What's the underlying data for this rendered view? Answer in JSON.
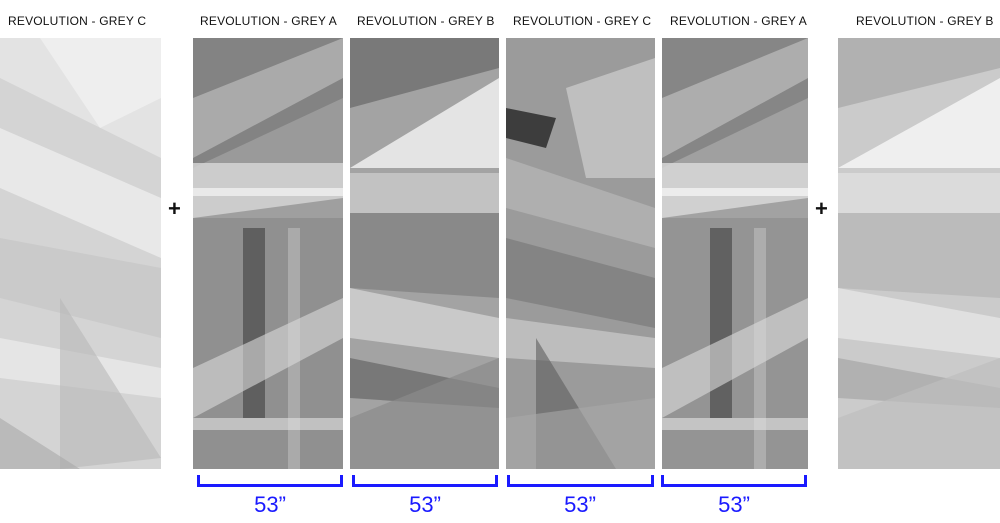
{
  "panels": [
    {
      "label": "REVOLUTION - GREY C"
    },
    {
      "label": "REVOLUTION - GREY A"
    },
    {
      "label": "REVOLUTION - GREY B"
    },
    {
      "label": "REVOLUTION - GREY C"
    },
    {
      "label": "REVOLUTION - GREY A"
    },
    {
      "label": "REVOLUTION - GREY B"
    }
  ],
  "plus_signs": [
    "+",
    "+"
  ],
  "width_labels": [
    "53”",
    "53”",
    "53”",
    "53”"
  ],
  "colors": {
    "dimension": "#1a1aff",
    "text": "#111111"
  }
}
